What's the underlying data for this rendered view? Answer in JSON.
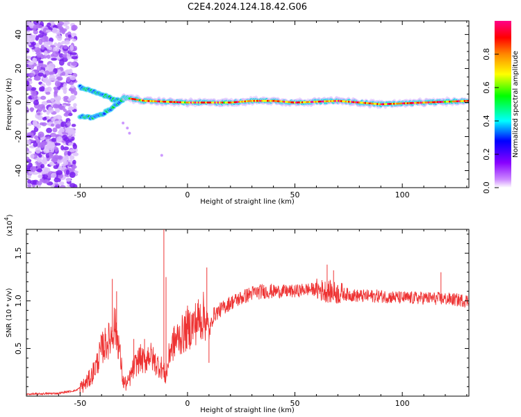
{
  "title": "C2E4.2024.124.18.42.G06",
  "chart_data": [
    {
      "type": "heatmap",
      "xlabel": "Height of straight line (km)",
      "ylabel": "Frequency (Hz)",
      "xlim": [
        -75,
        131
      ],
      "ylim": [
        -50,
        48
      ],
      "xticks": [
        -50,
        0,
        50,
        100
      ],
      "yticks": [
        -40,
        -20,
        0,
        20,
        40
      ],
      "colorbar": {
        "label": "Normalized spectral amplitude",
        "range": [
          0,
          1
        ],
        "ticks": [
          "0.0",
          "0.2",
          "0.4",
          "0.6",
          "0.8"
        ],
        "colors": [
          "#ffffff",
          "#cc88ff",
          "#8800ff",
          "#0000ff",
          "#00ffff",
          "#00ff00",
          "#ffff00",
          "#ff8800",
          "#ff0000",
          "#ff0088"
        ]
      },
      "features": {
        "noise_region_x": [
          -75,
          -52
        ],
        "upper_branch": [
          [
            -50,
            9
          ],
          [
            -45,
            7
          ],
          [
            -40,
            5
          ],
          [
            -35,
            2
          ],
          [
            -30,
            1
          ]
        ],
        "lower_branch": [
          [
            -50,
            -8
          ],
          [
            -45,
            -9
          ],
          [
            -40,
            -7
          ],
          [
            -35,
            -3
          ],
          [
            -30,
            2
          ]
        ],
        "carrier_line": [
          [
            -30,
            3
          ],
          [
            -20,
            1
          ],
          [
            0,
            0
          ],
          [
            20,
            0
          ],
          [
            30,
            1
          ],
          [
            40,
            1
          ],
          [
            50,
            0
          ],
          [
            70,
            1
          ],
          [
            90,
            -1
          ],
          [
            110,
            0
          ],
          [
            131,
            1
          ]
        ]
      }
    },
    {
      "type": "line",
      "xlabel": "Height of straight line (km)",
      "ylabel": "SNR (10 * v/v)",
      "ymultiplier": "(x10",
      "yexponent": "4",
      "ymultiplier_close": ")",
      "xlim": [
        -75,
        131
      ],
      "ylim": [
        0,
        1.75
      ],
      "xticks": [
        -50,
        0,
        50,
        100
      ],
      "yticks": [
        "0.5",
        "1.0",
        "1.5"
      ],
      "color": "#ee3333",
      "envelope": [
        [
          -75,
          0.02
        ],
        [
          -60,
          0.03
        ],
        [
          -52,
          0.06
        ],
        [
          -48,
          0.12
        ],
        [
          -45,
          0.2
        ],
        [
          -42,
          0.35
        ],
        [
          -40,
          0.5
        ],
        [
          -38,
          0.55
        ],
        [
          -36,
          0.6
        ],
        [
          -34,
          0.75
        ],
        [
          -32,
          0.55
        ],
        [
          -30,
          0.15
        ],
        [
          -28,
          0.12
        ],
        [
          -25,
          0.3
        ],
        [
          -22,
          0.4
        ],
        [
          -20,
          0.35
        ],
        [
          -18,
          0.45
        ],
        [
          -15,
          0.35
        ],
        [
          -12,
          0.3
        ],
        [
          -10,
          0.2
        ],
        [
          -8,
          0.5
        ],
        [
          -5,
          0.6
        ],
        [
          -2,
          0.65
        ],
        [
          0,
          0.7
        ],
        [
          3,
          0.75
        ],
        [
          5,
          0.8
        ],
        [
          8,
          0.85
        ],
        [
          10,
          0.65
        ],
        [
          12,
          0.85
        ],
        [
          15,
          0.9
        ],
        [
          20,
          0.98
        ],
        [
          25,
          1.03
        ],
        [
          30,
          1.08
        ],
        [
          35,
          1.1
        ],
        [
          40,
          1.1
        ],
        [
          50,
          1.1
        ],
        [
          55,
          1.12
        ],
        [
          60,
          1.12
        ],
        [
          65,
          1.1
        ],
        [
          70,
          1.08
        ],
        [
          80,
          1.05
        ],
        [
          90,
          1.05
        ],
        [
          100,
          1.03
        ],
        [
          110,
          1.03
        ],
        [
          120,
          1.02
        ],
        [
          131,
          1.0
        ]
      ],
      "spikes": [
        [
          -35,
          1.23
        ],
        [
          -33,
          1.1
        ],
        [
          -25,
          0.6
        ],
        [
          -20,
          0.6
        ],
        [
          -11,
          1.75
        ],
        [
          -10,
          1.25
        ],
        [
          0,
          0.95
        ],
        [
          9,
          1.35
        ],
        [
          10,
          0.35
        ],
        [
          65,
          1.38
        ],
        [
          68,
          1.32
        ],
        [
          118,
          1.3
        ]
      ]
    }
  ]
}
